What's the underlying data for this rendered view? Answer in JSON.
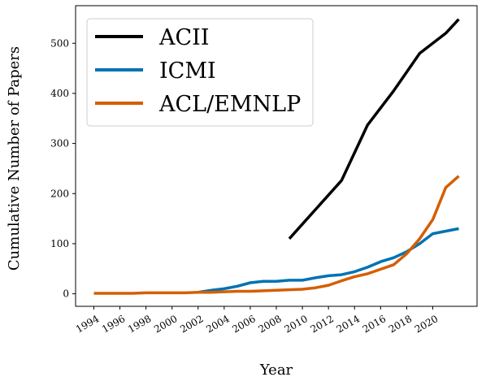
{
  "chart_data": {
    "type": "line",
    "xlabel": "Year",
    "ylabel": "Cumulative Number of Papers",
    "xlim": [
      1992.6,
      2023.4
    ],
    "ylim": [
      -25,
      575
    ],
    "x_ticks": [
      1994,
      1996,
      1998,
      2000,
      2002,
      2004,
      2006,
      2008,
      2010,
      2012,
      2014,
      2016,
      2018,
      2020
    ],
    "x_tick_labels": [
      "1994",
      "1996",
      "1998",
      "2000",
      "2002",
      "2004",
      "2006",
      "2008",
      "2010",
      "2012",
      "2014",
      "2016",
      "2018",
      "2020"
    ],
    "y_ticks": [
      0,
      100,
      200,
      300,
      400,
      500
    ],
    "y_tick_labels": [
      "0",
      "100",
      "200",
      "300",
      "400",
      "500"
    ],
    "grid": false,
    "legend_position": "top-left",
    "series": [
      {
        "name": "ACII",
        "color": "#000000",
        "x": [
          2009,
          2011,
          2013,
          2015,
          2017,
          2019,
          2021,
          2022
        ],
        "y": [
          110,
          168,
          226,
          337,
          405,
          480,
          520,
          548
        ]
      },
      {
        "name": "ICMI",
        "color": "#0072b2",
        "x": [
          2002,
          2003,
          2004,
          2005,
          2006,
          2007,
          2008,
          2009,
          2010,
          2011,
          2012,
          2013,
          2014,
          2015,
          2016,
          2017,
          2018,
          2019,
          2020,
          2021,
          2022
        ],
        "y": [
          3,
          7,
          10,
          15,
          22,
          25,
          25,
          27,
          27,
          32,
          36,
          38,
          44,
          53,
          64,
          72,
          84,
          100,
          120,
          125,
          130
        ]
      },
      {
        "name": "ACL/EMNLP",
        "color": "#d55e00",
        "x": [
          1994,
          1995,
          1996,
          1997,
          1998,
          1999,
          2000,
          2001,
          2002,
          2003,
          2004,
          2005,
          2006,
          2007,
          2008,
          2009,
          2010,
          2011,
          2012,
          2013,
          2014,
          2015,
          2016,
          2017,
          2018,
          2019,
          2020,
          2021,
          2022
        ],
        "y": [
          1,
          1,
          1,
          1,
          2,
          2,
          2,
          2,
          3,
          3,
          4,
          5,
          5,
          6,
          7,
          8,
          9,
          12,
          17,
          26,
          34,
          40,
          49,
          58,
          80,
          110,
          148,
          212,
          235
        ]
      }
    ]
  }
}
